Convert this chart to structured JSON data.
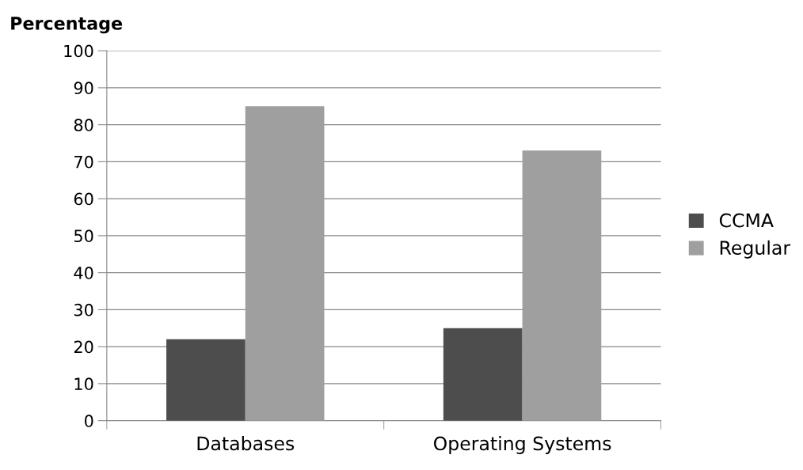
{
  "chart_data": {
    "type": "bar",
    "ylabel": "Percentage",
    "categories": [
      "Databases",
      "Operating Systems"
    ],
    "series": [
      {
        "name": "CCMA",
        "color": "#4d4d4d",
        "values": [
          22,
          25
        ]
      },
      {
        "name": "Regular",
        "color": "#9f9f9f",
        "values": [
          85,
          73
        ]
      }
    ],
    "ylim": [
      0,
      100
    ],
    "yticks": [
      0,
      10,
      20,
      30,
      40,
      50,
      60,
      70,
      80,
      90,
      100
    ],
    "grid": "y",
    "legend": "right"
  }
}
